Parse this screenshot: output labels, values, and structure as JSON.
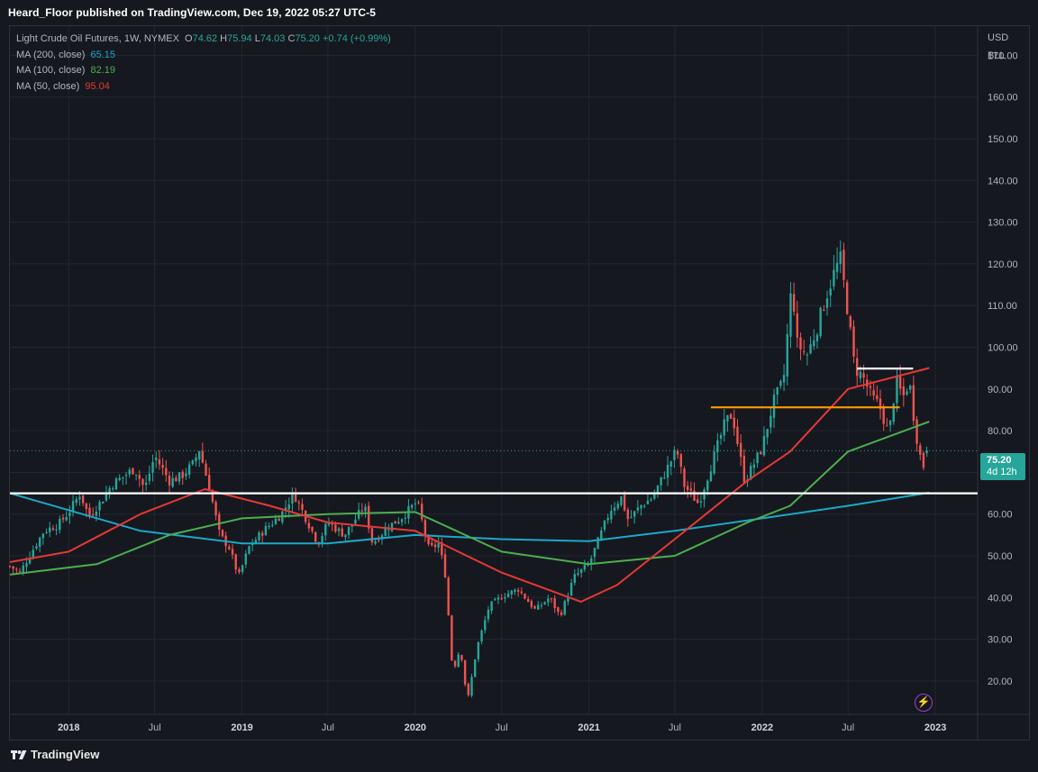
{
  "header": {
    "published_text": "Heard_Floor published on TradingView.com, Dec 19, 2022 05:27 UTC-5"
  },
  "legend": {
    "symbol": "Light Crude Oil Futures, 1W, NYMEX",
    "o_label": "O",
    "o": "74.62",
    "h_label": "H",
    "h": "75.94",
    "l_label": "L",
    "l": "74.03",
    "c_label": "C",
    "c": "75.20",
    "change": "+0.74 (+0.99%)",
    "ma200_label": "MA (200, close)",
    "ma200": "65.15",
    "ma100_label": "MA (100, close)",
    "ma100": "82.19",
    "ma50_label": "MA (50, close)",
    "ma50": "95.04"
  },
  "axis": {
    "currency": "USD",
    "unit": "BLL"
  },
  "price_tag": {
    "price": "75.20",
    "countdown": "4d 12h"
  },
  "footer": {
    "brand": "TradingView"
  },
  "colors": {
    "background": "#16181f",
    "grid": "#232631",
    "text": "#b2b5be",
    "up": "#26a69a",
    "down": "#ef5350",
    "ma200": "#1ba9c8",
    "ma100": "#4caf50",
    "ma50": "#e53935",
    "level_white": "#ffffff",
    "level_orange": "#ff9800"
  },
  "chart_data": {
    "type": "candlestick",
    "title": "Light Crude Oil Futures, 1W, NYMEX",
    "ylabel": "USD",
    "ylim": [
      12,
      177
    ],
    "y_ticks": [
      "20.00",
      "30.00",
      "40.00",
      "50.00",
      "60.00",
      "70.00",
      "80.00",
      "90.00",
      "100.00",
      "110.00",
      "120.00",
      "130.00",
      "140.00",
      "150.00",
      "160.00",
      "170.00"
    ],
    "x_range": [
      "2017-08-30",
      "2023-03-31"
    ],
    "x_ticks": [
      {
        "date": "2018-01-01",
        "label": "2018",
        "bold": true
      },
      {
        "date": "2018-07-01",
        "label": "Jul",
        "bold": false
      },
      {
        "date": "2019-01-01",
        "label": "2019",
        "bold": true
      },
      {
        "date": "2019-07-01",
        "label": "Jul",
        "bold": false
      },
      {
        "date": "2020-01-01",
        "label": "2020",
        "bold": true
      },
      {
        "date": "2020-07-01",
        "label": "Jul",
        "bold": false
      },
      {
        "date": "2021-01-01",
        "label": "2021",
        "bold": true
      },
      {
        "date": "2021-07-01",
        "label": "Jul",
        "bold": false
      },
      {
        "date": "2022-01-01",
        "label": "2022",
        "bold": true
      },
      {
        "date": "2022-07-01",
        "label": "Jul",
        "bold": false
      },
      {
        "date": "2023-01-01",
        "label": "2023",
        "bold": true
      }
    ],
    "price_path": [
      [
        "2017-08-30",
        47.5
      ],
      [
        "2017-09-20",
        46
      ],
      [
        "2017-10-15",
        51
      ],
      [
        "2017-11-10",
        56
      ],
      [
        "2017-12-10",
        57.5
      ],
      [
        "2018-01-01",
        60.5
      ],
      [
        "2018-01-25",
        65
      ],
      [
        "2018-02-12",
        59.5
      ],
      [
        "2018-03-10",
        63
      ],
      [
        "2018-04-01",
        67
      ],
      [
        "2018-05-20",
        71
      ],
      [
        "2018-06-10",
        66
      ],
      [
        "2018-07-01",
        74
      ],
      [
        "2018-08-01",
        68
      ],
      [
        "2018-08-25",
        69
      ],
      [
        "2018-09-20",
        72
      ],
      [
        "2018-10-03",
        75.5
      ],
      [
        "2018-10-25",
        66
      ],
      [
        "2018-11-15",
        55
      ],
      [
        "2018-12-05",
        52
      ],
      [
        "2018-12-25",
        45
      ],
      [
        "2019-01-15",
        52
      ],
      [
        "2019-02-15",
        56
      ],
      [
        "2019-03-25",
        60
      ],
      [
        "2019-04-20",
        65
      ],
      [
        "2019-05-20",
        58
      ],
      [
        "2019-06-10",
        53
      ],
      [
        "2019-07-01",
        58
      ],
      [
        "2019-08-05",
        55
      ],
      [
        "2019-09-16",
        62
      ],
      [
        "2019-10-03",
        53
      ],
      [
        "2019-11-05",
        57
      ],
      [
        "2019-12-01",
        59
      ],
      [
        "2020-01-05",
        63
      ],
      [
        "2020-01-30",
        51.5
      ],
      [
        "2020-02-20",
        53
      ],
      [
        "2020-03-05",
        45
      ],
      [
        "2020-03-20",
        22
      ],
      [
        "2020-04-05",
        28
      ],
      [
        "2020-04-20",
        15
      ],
      [
        "2020-05-10",
        28
      ],
      [
        "2020-06-05",
        38
      ],
      [
        "2020-07-05",
        40.5
      ],
      [
        "2020-08-05",
        42
      ],
      [
        "2020-09-10",
        37
      ],
      [
        "2020-10-10",
        40
      ],
      [
        "2020-11-01",
        35.5
      ],
      [
        "2020-12-01",
        45
      ],
      [
        "2021-01-01",
        48
      ],
      [
        "2021-02-15",
        61
      ],
      [
        "2021-03-10",
        64
      ],
      [
        "2021-03-25",
        58.5
      ],
      [
        "2021-04-20",
        62
      ],
      [
        "2021-05-15",
        64
      ],
      [
        "2021-06-15",
        71
      ],
      [
        "2021-07-05",
        75.5
      ],
      [
        "2021-07-20",
        67
      ],
      [
        "2021-08-20",
        62.5
      ],
      [
        "2021-09-15",
        71.5
      ],
      [
        "2021-10-15",
        82
      ],
      [
        "2021-10-30",
        84
      ],
      [
        "2021-11-25",
        68
      ],
      [
        "2021-12-10",
        71
      ],
      [
        "2022-01-01",
        76
      ],
      [
        "2022-01-25",
        87
      ],
      [
        "2022-02-15",
        92
      ],
      [
        "2022-03-05",
        116
      ],
      [
        "2022-03-15",
        101
      ],
      [
        "2022-04-05",
        98
      ],
      [
        "2022-04-25",
        104
      ],
      [
        "2022-05-15",
        112
      ],
      [
        "2022-06-05",
        119
      ],
      [
        "2022-06-15",
        121
      ],
      [
        "2022-07-01",
        108
      ],
      [
        "2022-07-15",
        95
      ],
      [
        "2022-08-01",
        93
      ],
      [
        "2022-08-20",
        88
      ],
      [
        "2022-09-05",
        86
      ],
      [
        "2022-09-25",
        79
      ],
      [
        "2022-10-10",
        92
      ],
      [
        "2022-10-25",
        88
      ],
      [
        "2022-11-07",
        92
      ],
      [
        "2022-11-20",
        80
      ],
      [
        "2022-12-05",
        71
      ],
      [
        "2022-12-19",
        75.2
      ]
    ],
    "ma200_path": [
      [
        "2017-08-30",
        65
      ],
      [
        "2018-06-01",
        56
      ],
      [
        "2019-01-01",
        53
      ],
      [
        "2019-07-01",
        53
      ],
      [
        "2020-01-01",
        55
      ],
      [
        "2020-07-01",
        54
      ],
      [
        "2021-01-01",
        53.5
      ],
      [
        "2021-07-01",
        56
      ],
      [
        "2022-01-01",
        59
      ],
      [
        "2022-07-01",
        62
      ],
      [
        "2022-12-19",
        65.15
      ]
    ],
    "ma100_path": [
      [
        "2017-08-30",
        45.5
      ],
      [
        "2018-03-01",
        48
      ],
      [
        "2018-08-01",
        55
      ],
      [
        "2019-01-01",
        59
      ],
      [
        "2019-07-01",
        60
      ],
      [
        "2020-01-01",
        60.5
      ],
      [
        "2020-07-01",
        51
      ],
      [
        "2021-01-01",
        48
      ],
      [
        "2021-07-01",
        50
      ],
      [
        "2021-12-01",
        58
      ],
      [
        "2022-03-01",
        62
      ],
      [
        "2022-07-01",
        75
      ],
      [
        "2022-12-19",
        82.19
      ]
    ],
    "ma50_path": [
      [
        "2017-08-30",
        48.5
      ],
      [
        "2018-01-01",
        51
      ],
      [
        "2018-06-01",
        60
      ],
      [
        "2018-10-15",
        66
      ],
      [
        "2019-03-01",
        62
      ],
      [
        "2019-07-01",
        58
      ],
      [
        "2020-01-01",
        56
      ],
      [
        "2020-07-01",
        46
      ],
      [
        "2020-12-15",
        39
      ],
      [
        "2021-03-01",
        43
      ],
      [
        "2021-07-01",
        54
      ],
      [
        "2021-12-01",
        68
      ],
      [
        "2022-03-01",
        75
      ],
      [
        "2022-07-01",
        90
      ],
      [
        "2022-12-19",
        95.04
      ]
    ],
    "levels": [
      {
        "y": 65.0,
        "x0": "2017-08-30",
        "x1": "2023-03-31",
        "color": "#ffffff"
      },
      {
        "y": 85.6,
        "x0": "2021-09-15",
        "x1": "2022-10-18",
        "color": "#ff9800"
      },
      {
        "y": 94.9,
        "x0": "2022-07-20",
        "x1": "2022-11-15",
        "color": "#ffffff"
      }
    ],
    "last_price": 75.2
  }
}
